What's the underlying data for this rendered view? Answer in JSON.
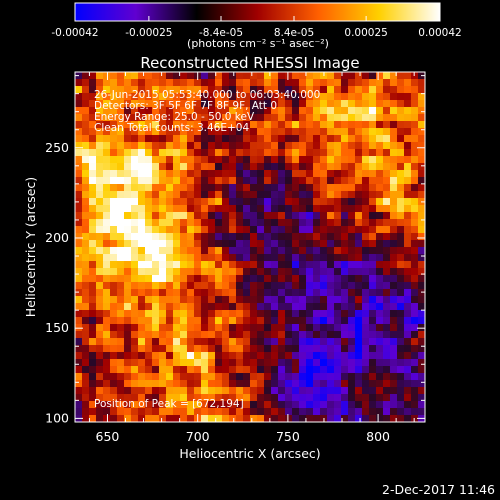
{
  "colorbar": {
    "ticks": [
      "-0.00042",
      "-0.00025",
      "-8.4e-05",
      "8.4e-05",
      "0.00025",
      "0.00042"
    ],
    "tick_values": [
      -0.00042,
      -0.00025,
      -8.4e-05,
      8.4e-05,
      0.00025,
      0.00042
    ],
    "range": [
      -0.00042,
      0.00042
    ],
    "unit_label": "(photons cm⁻² s⁻¹ asec⁻²)",
    "colormap": [
      "#0000ff",
      "#6000d0",
      "#000000",
      "#a00000",
      "#ff6000",
      "#ffd000",
      "#ffffff"
    ]
  },
  "chart_data": {
    "type": "heatmap",
    "title": "Reconstructed RHESSI Image",
    "xlabel": "Heliocentric X (arcsec)",
    "ylabel": "Heliocentric Y (arcsec)",
    "xlim": [
      632,
      826
    ],
    "ylim": [
      98,
      292
    ],
    "xticks": [
      650,
      700,
      750,
      800
    ],
    "yticks": [
      100,
      150,
      200,
      250
    ],
    "annotations": [
      "26-Jun-2015 05:53:40.000 to 06:03:40.000",
      "Detectors: 3F 5F 6F 7F 8F 9F, Att 0",
      "Energy Range: 25.0 - 50.0 keV",
      "Clean     Total counts: 3.46E+04"
    ],
    "peak_label": "Position of Peak = [672,194]",
    "peak": [
      672,
      194
    ]
  },
  "footer": {
    "date": "2-Dec-2017 11:46"
  }
}
